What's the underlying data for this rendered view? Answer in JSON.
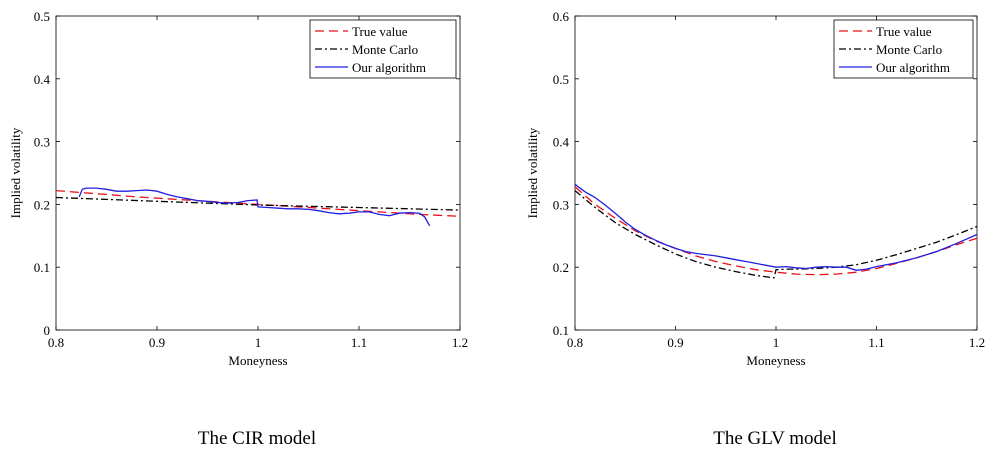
{
  "figure": {
    "panels": [
      {
        "caption": "The CIR model"
      },
      {
        "caption": "The GLV model"
      }
    ]
  },
  "chart_data": [
    {
      "type": "line",
      "title": "",
      "caption": "The CIR model",
      "xlabel": "Moneyness",
      "ylabel": "Implied volatility",
      "xlim": [
        0.8,
        1.2
      ],
      "ylim": [
        0,
        0.5
      ],
      "xticks": [
        "0.8",
        "0.9",
        "1",
        "1.1",
        "1.2"
      ],
      "yticks": [
        "0",
        "0.1",
        "0.2",
        "0.3",
        "0.4",
        "0.5"
      ],
      "grid": false,
      "legend_position": "top-right",
      "series": [
        {
          "name": "True value",
          "color": "#e8111b",
          "dash": "dashed",
          "x": [
            0.8,
            0.84,
            0.88,
            0.92,
            0.96,
            1.0,
            1.04,
            1.08,
            1.12,
            1.16,
            1.2
          ],
          "y": [
            0.222,
            0.217,
            0.212,
            0.208,
            0.204,
            0.2,
            0.196,
            0.192,
            0.188,
            0.184,
            0.181
          ]
        },
        {
          "name": "Monte Carlo",
          "color": "#000000",
          "dash": "dashdot",
          "x": [
            0.8,
            0.85,
            0.9,
            0.95,
            1.0,
            1.05,
            1.1,
            1.15,
            1.2
          ],
          "y": [
            0.211,
            0.208,
            0.205,
            0.202,
            0.199,
            0.197,
            0.195,
            0.193,
            0.191
          ]
        },
        {
          "name": "Our algorithm",
          "color": "#1f1fe0",
          "dash": "solid",
          "x": [
            0.823,
            0.826,
            0.83,
            0.84,
            0.85,
            0.86,
            0.87,
            0.88,
            0.89,
            0.9,
            0.91,
            0.92,
            0.93,
            0.94,
            0.95,
            0.96,
            0.97,
            0.98,
            0.99,
            0.999,
            1.0,
            1.01,
            1.02,
            1.03,
            1.04,
            1.05,
            1.06,
            1.07,
            1.08,
            1.09,
            1.1,
            1.11,
            1.12,
            1.13,
            1.14,
            1.15,
            1.16,
            1.165,
            1.17
          ],
          "y": [
            0.212,
            0.224,
            0.226,
            0.226,
            0.224,
            0.221,
            0.221,
            0.222,
            0.223,
            0.221,
            0.216,
            0.212,
            0.209,
            0.206,
            0.205,
            0.203,
            0.202,
            0.203,
            0.206,
            0.207,
            0.196,
            0.195,
            0.194,
            0.193,
            0.193,
            0.192,
            0.19,
            0.187,
            0.185,
            0.186,
            0.188,
            0.188,
            0.184,
            0.182,
            0.186,
            0.187,
            0.186,
            0.18,
            0.166
          ]
        }
      ]
    },
    {
      "type": "line",
      "title": "",
      "caption": "The GLV model",
      "xlabel": "Moneyness",
      "ylabel": "Implied volatility",
      "xlim": [
        0.8,
        1.2
      ],
      "ylim": [
        0.1,
        0.6
      ],
      "xticks": [
        "0.8",
        "0.9",
        "1",
        "1.1",
        "1.2"
      ],
      "yticks": [
        "0.1",
        "0.2",
        "0.3",
        "0.4",
        "0.5",
        "0.6"
      ],
      "grid": false,
      "legend_position": "top-right",
      "series": [
        {
          "name": "True value",
          "color": "#e8111b",
          "dash": "dashed",
          "x": [
            0.8,
            0.82,
            0.84,
            0.86,
            0.88,
            0.9,
            0.92,
            0.94,
            0.96,
            0.98,
            1.0,
            1.02,
            1.04,
            1.06,
            1.08,
            1.1,
            1.12,
            1.14,
            1.16,
            1.18,
            1.2
          ],
          "y": [
            0.328,
            0.3,
            0.278,
            0.258,
            0.242,
            0.23,
            0.218,
            0.209,
            0.202,
            0.196,
            0.192,
            0.189,
            0.188,
            0.189,
            0.192,
            0.198,
            0.206,
            0.215,
            0.225,
            0.236,
            0.246
          ]
        },
        {
          "name": "Monte Carlo",
          "color": "#000000",
          "dash": "dashdot",
          "x": [
            0.8,
            0.82,
            0.84,
            0.86,
            0.88,
            0.9,
            0.92,
            0.94,
            0.96,
            0.98,
            0.998,
            1.0,
            1.01,
            1.02,
            1.04,
            1.06,
            1.08,
            1.1,
            1.12,
            1.14,
            1.16,
            1.18,
            1.2
          ],
          "y": [
            0.322,
            0.295,
            0.271,
            0.252,
            0.236,
            0.221,
            0.209,
            0.2,
            0.193,
            0.187,
            0.183,
            0.196,
            0.197,
            0.197,
            0.198,
            0.2,
            0.204,
            0.211,
            0.22,
            0.23,
            0.24,
            0.252,
            0.265
          ]
        },
        {
          "name": "Our algorithm",
          "color": "#1f1fe0",
          "dash": "solid",
          "x": [
            0.8,
            0.81,
            0.82,
            0.83,
            0.84,
            0.85,
            0.86,
            0.87,
            0.88,
            0.89,
            0.9,
            0.91,
            0.92,
            0.93,
            0.94,
            0.95,
            0.96,
            0.97,
            0.98,
            0.99,
            1.0,
            1.01,
            1.02,
            1.03,
            1.04,
            1.05,
            1.06,
            1.07,
            1.08,
            1.09,
            1.1,
            1.12,
            1.14,
            1.16,
            1.18,
            1.2
          ],
          "y": [
            0.332,
            0.32,
            0.311,
            0.299,
            0.286,
            0.272,
            0.26,
            0.251,
            0.243,
            0.236,
            0.23,
            0.225,
            0.222,
            0.22,
            0.218,
            0.215,
            0.212,
            0.209,
            0.206,
            0.203,
            0.2,
            0.201,
            0.199,
            0.198,
            0.2,
            0.201,
            0.2,
            0.2,
            0.195,
            0.197,
            0.201,
            0.207,
            0.215,
            0.225,
            0.238,
            0.252
          ]
        }
      ]
    }
  ]
}
